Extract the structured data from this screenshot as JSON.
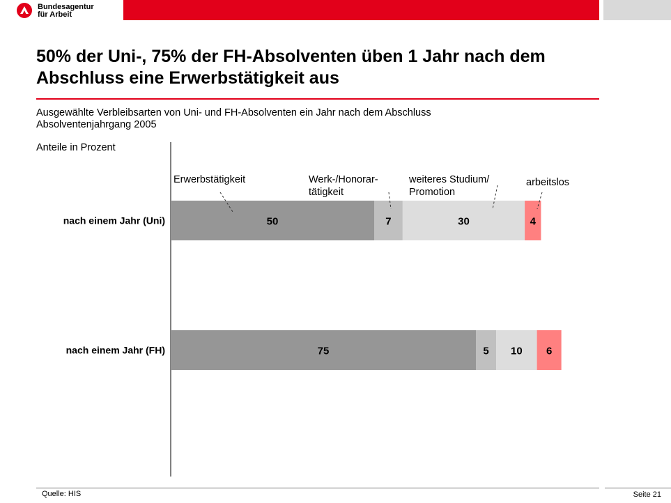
{
  "header": {
    "org_line1": "Bundesagentur",
    "org_line2": "für Arbeit",
    "accent_color": "#e2001a"
  },
  "title": "50% der Uni-, 75% der FH-Absolventen üben 1 Jahr nach dem Abschluss eine Erwerbstätigkeit aus",
  "subtitle_line1": "Ausgewählte Verbleibsarten von Uni- und FH-Absolventen ein Jahr nach dem Abschluss",
  "subtitle_line2": "Absolventenjahrgang 2005",
  "footer": {
    "source": "Quelle:  HIS",
    "page": "Seite 21"
  },
  "chart_data": {
    "type": "bar",
    "orientation": "horizontal",
    "stacked": true,
    "unit_label": "Anteile in Prozent",
    "categories": [
      "nach einem Jahr (Uni)",
      "nach einem Jahr (FH)"
    ],
    "series": [
      {
        "name": "Erwerbstätigkeit",
        "label_lines": [
          "Erwerbstätigkeit"
        ],
        "values": [
          50,
          75
        ],
        "color": "#969696",
        "text_color": "#000000"
      },
      {
        "name": "Werk-/Honorar-tätigkeit",
        "label_lines": [
          "Werk-/Honorar-",
          "tätigkeit"
        ],
        "values": [
          7,
          5
        ],
        "color": "#c0c0c0",
        "text_color": "#000000"
      },
      {
        "name": "weiteres Studium/ Promotion",
        "label_lines": [
          "weiteres Studium/",
          "Promotion"
        ],
        "values": [
          30,
          10
        ],
        "color": "#dddddd",
        "text_color": "#000000"
      },
      {
        "name": "arbeitslos",
        "label_lines": [
          "arbeitslos"
        ],
        "values": [
          4,
          6
        ],
        "color": "#ff8080",
        "text_color": "#000000"
      }
    ],
    "legend": "direct labels above first bar",
    "grid": false
  }
}
